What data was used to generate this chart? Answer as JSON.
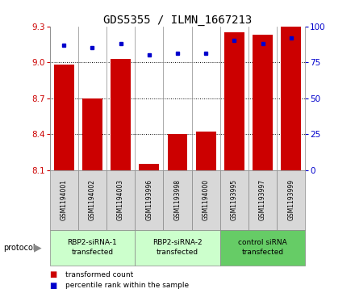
{
  "title": "GDS5355 / ILMN_1667213",
  "samples": [
    "GSM1194001",
    "GSM1194002",
    "GSM1194003",
    "GSM1193996",
    "GSM1193998",
    "GSM1194000",
    "GSM1193995",
    "GSM1193997",
    "GSM1193999"
  ],
  "transformed_counts": [
    8.98,
    8.7,
    9.03,
    8.15,
    8.4,
    8.42,
    9.25,
    9.23,
    9.3
  ],
  "percentile_ranks": [
    87,
    85,
    88,
    80,
    81,
    81,
    90,
    88,
    92
  ],
  "ylim_left": [
    8.1,
    9.3
  ],
  "ylim_right": [
    0,
    100
  ],
  "yticks_left": [
    8.1,
    8.4,
    8.7,
    9.0,
    9.3
  ],
  "yticks_right": [
    0,
    25,
    50,
    75,
    100
  ],
  "bar_color": "#cc0000",
  "dot_color": "#0000cc",
  "group_labels": [
    "RBP2-siRNA-1\ntransfected",
    "RBP2-siRNA-2\ntransfected",
    "control siRNA\ntransfected"
  ],
  "group_ranges": [
    [
      0,
      3
    ],
    [
      3,
      6
    ],
    [
      6,
      9
    ]
  ],
  "group_colors": [
    "#ccffcc",
    "#ccffcc",
    "#66cc66"
  ],
  "protocol_label": "protocol",
  "legend_items": [
    "transformed count",
    "percentile rank within the sample"
  ],
  "sample_bg": "#d8d8d8",
  "plot_bg": "#ffffff",
  "title_fontsize": 10
}
